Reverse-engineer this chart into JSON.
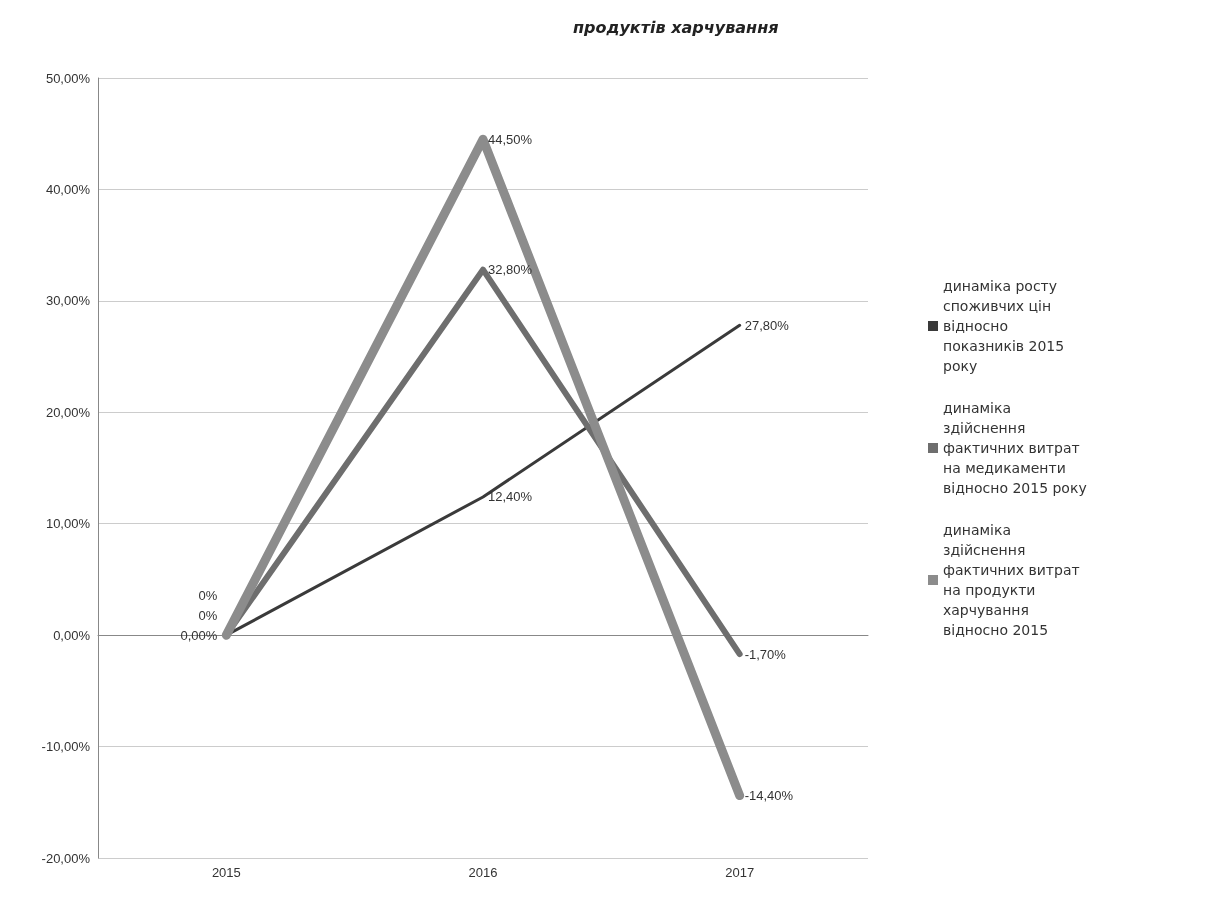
{
  "chart_data": {
    "type": "line",
    "title": "продуктів харчування",
    "categories": [
      "2015",
      "2016",
      "2017"
    ],
    "series": [
      {
        "name": "динаміка росту споживчих цін відносно показників 2015 року",
        "color": "#3a3a3a",
        "values": [
          0,
          12.4,
          27.8
        ],
        "value_labels": [
          "0,00%",
          "12,40%",
          "27,80%"
        ]
      },
      {
        "name": "динаміка здійснення фактичних витрат на медикаменти відносно 2015 року",
        "color": "#6e6e6e",
        "values": [
          0,
          32.8,
          -1.7
        ],
        "value_labels": [
          "0%",
          "32,80%",
          "-1,70%"
        ]
      },
      {
        "name": "динаміка  здійснення фактичних витрат на продукти харчування відносно 2015",
        "color": "#8c8c8c",
        "values": [
          0,
          44.5,
          -14.4
        ],
        "value_labels": [
          "0%",
          "44,50%",
          "-14,40%"
        ]
      }
    ],
    "ylim": [
      -20,
      50
    ],
    "yticks": [
      {
        "value": -20,
        "label": "-20,00%"
      },
      {
        "value": -10,
        "label": "-10,00%"
      },
      {
        "value": 0,
        "label": "0,00%"
      },
      {
        "value": 10,
        "label": "10,00%"
      },
      {
        "value": 20,
        "label": "20,00%"
      },
      {
        "value": 30,
        "label": "30,00%"
      },
      {
        "value": 40,
        "label": "40,00%"
      },
      {
        "value": 50,
        "label": "50,00%"
      }
    ],
    "grid": "y",
    "legend": "right",
    "marker": "none",
    "line_style": "solid"
  }
}
